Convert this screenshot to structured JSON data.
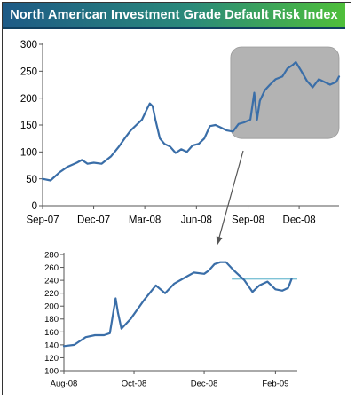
{
  "title": "North American Investment Grade Default Risk Index",
  "chart_data": [
    {
      "type": "line",
      "title": "",
      "xlabel": "",
      "ylabel": "",
      "ylim": [
        0,
        300
      ],
      "yticks": [
        0,
        50,
        100,
        150,
        200,
        250,
        300
      ],
      "xticks": [
        "Sep-07",
        "Dec-07",
        "Mar-08",
        "Jun-08",
        "Sep-08",
        "Dec-08"
      ],
      "xlim": [
        "2007-09-01",
        "2009-02-10"
      ],
      "grid": false,
      "highlight": {
        "x_from": "2008-08-01",
        "x_to": "2009-02-10",
        "y_from": 125,
        "y_to": 295,
        "color": "#b3b3b3"
      },
      "series": [
        {
          "color": "#3a6ea8",
          "x": [
            "2007-09-01",
            "2007-09-15",
            "2007-10-01",
            "2007-10-15",
            "2007-11-01",
            "2007-11-10",
            "2007-11-20",
            "2007-12-01",
            "2007-12-15",
            "2008-01-01",
            "2008-01-15",
            "2008-01-25",
            "2008-02-05",
            "2008-02-15",
            "2008-02-25",
            "2008-03-05",
            "2008-03-10",
            "2008-03-15",
            "2008-03-20",
            "2008-03-28",
            "2008-04-05",
            "2008-04-15",
            "2008-04-25",
            "2008-05-05",
            "2008-05-15",
            "2008-05-25",
            "2008-06-05",
            "2008-06-15",
            "2008-06-25",
            "2008-07-05",
            "2008-07-15",
            "2008-07-25",
            "2008-08-05",
            "2008-08-15",
            "2008-08-25",
            "2008-09-05",
            "2008-09-12",
            "2008-09-17",
            "2008-09-22",
            "2008-10-01",
            "2008-10-10",
            "2008-10-20",
            "2008-11-01",
            "2008-11-10",
            "2008-11-20",
            "2008-11-25",
            "2008-12-05",
            "2008-12-15",
            "2008-12-25",
            "2009-01-05",
            "2009-01-15",
            "2009-01-25",
            "2009-02-05",
            "2009-02-10"
          ],
          "values": [
            50,
            47,
            62,
            72,
            80,
            85,
            78,
            80,
            78,
            92,
            110,
            125,
            140,
            150,
            160,
            180,
            190,
            185,
            160,
            125,
            115,
            110,
            98,
            105,
            100,
            112,
            115,
            125,
            148,
            150,
            145,
            140,
            138,
            152,
            155,
            160,
            210,
            160,
            195,
            215,
            225,
            235,
            240,
            255,
            262,
            267,
            250,
            232,
            220,
            235,
            230,
            225,
            230,
            240
          ]
        }
      ]
    },
    {
      "type": "line",
      "title": "",
      "xlabel": "",
      "ylabel": "",
      "ylim": [
        100,
        280
      ],
      "yticks": [
        100,
        120,
        140,
        160,
        180,
        200,
        220,
        240,
        260,
        280
      ],
      "xticks": [
        "Aug-08",
        "Oct-08",
        "Dec-08",
        "Feb-09"
      ],
      "xlim": [
        "2008-08-01",
        "2009-02-20"
      ],
      "grid": false,
      "reference_line": {
        "y": 242,
        "x_from": "2008-12-25",
        "x_to": "2009-02-20",
        "color": "#7fc3d6"
      },
      "series": [
        {
          "color": "#3a6ea8",
          "x": [
            "2008-08-01",
            "2008-08-10",
            "2008-08-20",
            "2008-08-28",
            "2008-09-05",
            "2008-09-10",
            "2008-09-15",
            "2008-09-17",
            "2008-09-20",
            "2008-09-28",
            "2008-10-10",
            "2008-10-20",
            "2008-10-28",
            "2008-11-05",
            "2008-11-15",
            "2008-11-22",
            "2008-12-01",
            "2008-12-05",
            "2008-12-10",
            "2008-12-15",
            "2008-12-20",
            "2008-12-27",
            "2009-01-05",
            "2009-01-12",
            "2009-01-18",
            "2009-01-25",
            "2009-02-01",
            "2009-02-07",
            "2009-02-12",
            "2009-02-15"
          ],
          "values": [
            138,
            140,
            152,
            155,
            155,
            158,
            212,
            190,
            165,
            180,
            210,
            232,
            220,
            235,
            245,
            252,
            250,
            255,
            265,
            268,
            268,
            255,
            240,
            222,
            232,
            238,
            226,
            224,
            228,
            242
          ]
        }
      ]
    }
  ],
  "arrow": {
    "color": "#555555"
  }
}
